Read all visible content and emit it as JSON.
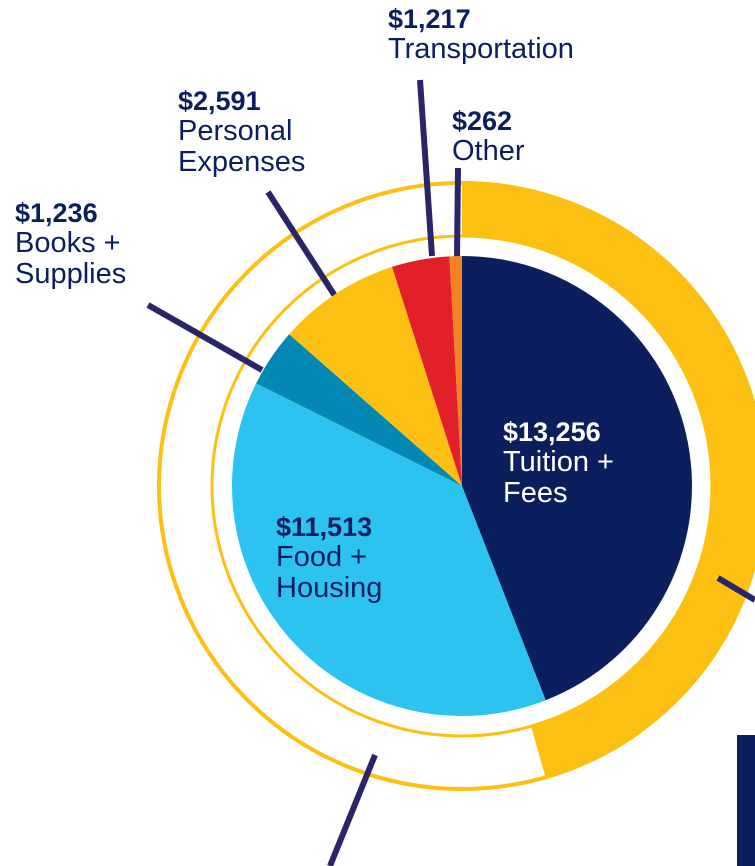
{
  "chart_data": {
    "type": "pie",
    "categories": [
      "Tuition + Fees",
      "Food + Housing",
      "Books + Supplies",
      "Personal Expenses",
      "Transportation",
      "Other"
    ],
    "values": [
      13256,
      11513,
      1236,
      2591,
      1217,
      262
    ],
    "value_labels": [
      "$13,256",
      "$11,513",
      "$1,236",
      "$2,591",
      "$1,217",
      "$262"
    ],
    "colors": [
      "#0b1f5e",
      "#2dc3f1",
      "#0388b3",
      "#fcc012",
      "#e2202a",
      "#f58220"
    ]
  }
}
